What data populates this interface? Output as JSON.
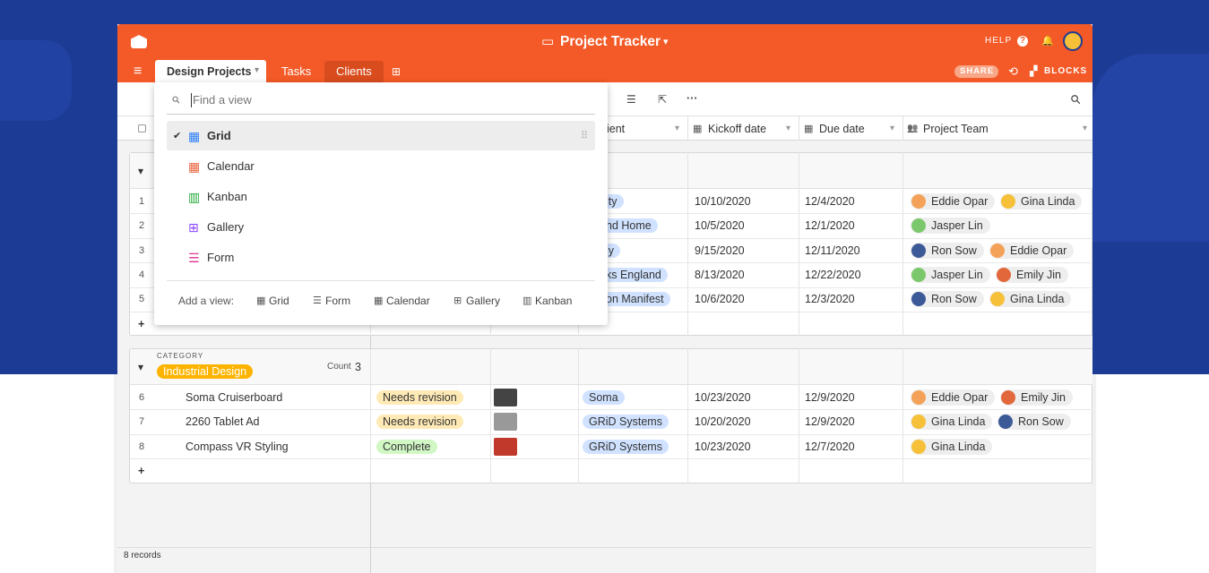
{
  "header": {
    "title": "Project Tracker",
    "help": "HELP",
    "share": "SHARE",
    "blocks": "BLOCKS"
  },
  "tabs": [
    "Design Projects",
    "Tasks",
    "Clients"
  ],
  "columns": {
    "client": "ient",
    "kickoff": "Kickoff date",
    "due": "Due date",
    "team": "Project Team"
  },
  "groups": [
    {
      "rows": [
        {
          "number": 1,
          "client": "ity",
          "kickoff": "10/10/2020",
          "due": "12/4/2020",
          "team": [
            "Eddie Opar",
            "Gina Linda"
          ]
        },
        {
          "number": 2,
          "client": "nd Home",
          "kickoff": "10/5/2020",
          "due": "12/1/2020",
          "team": [
            "Jasper Lin"
          ]
        },
        {
          "number": 3,
          "client": "ly",
          "kickoff": "9/15/2020",
          "due": "12/11/2020",
          "team": [
            "Ron Sow",
            "Eddie Opar"
          ]
        },
        {
          "number": 4,
          "client": "ks England",
          "kickoff": "8/13/2020",
          "due": "12/22/2020",
          "team": [
            "Jasper Lin",
            "Emily Jin"
          ]
        },
        {
          "number": 5,
          "client": "on Manifest",
          "kickoff": "10/6/2020",
          "due": "12/3/2020",
          "team": [
            "Ron Sow",
            "Gina Linda"
          ]
        }
      ]
    },
    {
      "field_label": "CATEGORY",
      "value": "Industrial Design",
      "count_label": "Count",
      "count": 3,
      "rows": [
        {
          "number": 6,
          "name": "Soma Cruiserboard",
          "status": "Needs revision",
          "client": "Soma",
          "kickoff": "10/23/2020",
          "due": "12/9/2020",
          "team": [
            "Eddie Opar",
            "Emily Jin"
          ]
        },
        {
          "number": 7,
          "name": "2260 Tablet Ad",
          "status": "Needs revision",
          "client": "GRiD Systems",
          "kickoff": "10/20/2020",
          "due": "12/9/2020",
          "team": [
            "Gina Linda",
            "Ron Sow"
          ]
        },
        {
          "number": 8,
          "name": "Compass VR Styling",
          "status": "Complete",
          "client": "GRiD Systems",
          "kickoff": "10/23/2020",
          "due": "12/7/2020",
          "team": [
            "Gina Linda"
          ]
        }
      ]
    }
  ],
  "footer": {
    "records": "8 records"
  },
  "view_menu": {
    "search_placeholder": "Find a view",
    "views": [
      "Grid",
      "Calendar",
      "Kanban",
      "Gallery",
      "Form"
    ],
    "add_label": "Add a view:",
    "add_views": [
      "Grid",
      "Form",
      "Calendar",
      "Gallery",
      "Kanban"
    ]
  }
}
